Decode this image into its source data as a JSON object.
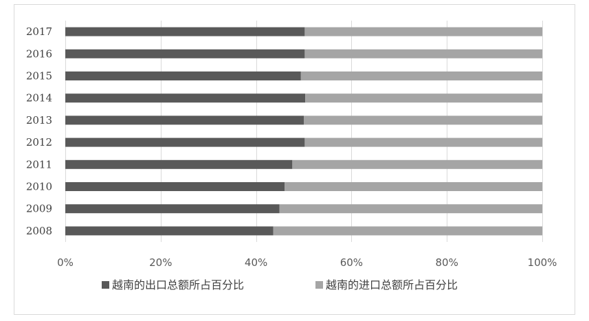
{
  "chart_data": {
    "type": "bar",
    "orientation": "horizontal",
    "stacked": "percent",
    "categories": [
      "2017",
      "2016",
      "2015",
      "2014",
      "2013",
      "2012",
      "2011",
      "2010",
      "2009",
      "2008"
    ],
    "series": [
      {
        "name": "越南的出口总额所占百分比",
        "color": "#595959",
        "values": [
          50.2,
          50.2,
          49.4,
          50.3,
          50.0,
          50.2,
          47.6,
          46.0,
          44.9,
          43.6
        ]
      },
      {
        "name": "越南的进口总额所占百分比",
        "color": "#a5a5a5",
        "values": [
          49.8,
          49.8,
          50.6,
          49.7,
          50.0,
          49.8,
          52.4,
          54.0,
          55.1,
          56.4
        ]
      }
    ],
    "x_ticks": [
      "0%",
      "20%",
      "40%",
      "60%",
      "80%",
      "100%"
    ],
    "xlim": [
      0,
      100
    ],
    "title": "",
    "xlabel": "",
    "ylabel": "",
    "grid": "vertical",
    "legend_position": "bottom"
  }
}
